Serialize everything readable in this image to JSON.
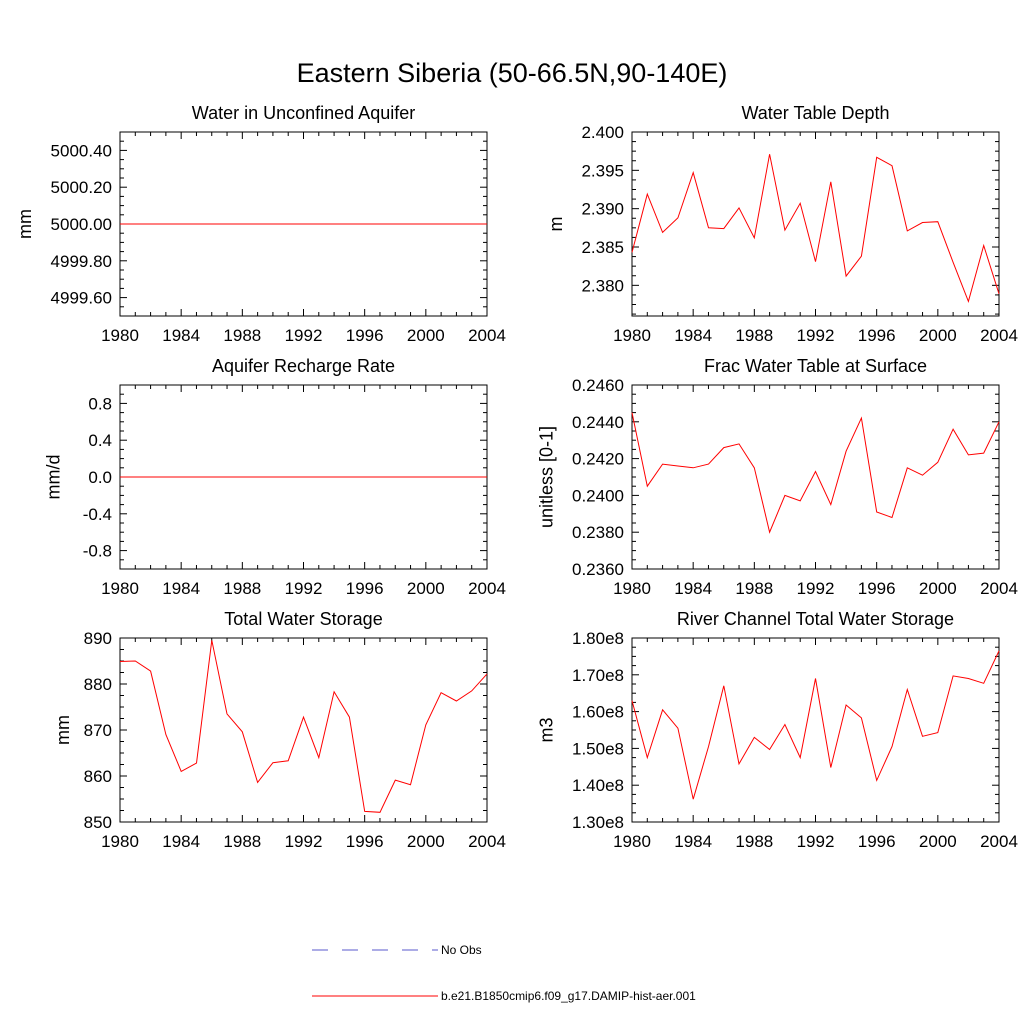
{
  "title": "Eastern Siberia (50-66.5N,90-140E)",
  "legend": {
    "placement": "bottom-center",
    "entries": [
      {
        "label": "No Obs",
        "style": "dashed",
        "color": "#5a5acc"
      },
      {
        "label": "b.e21.B1850cmip6.f09_g17.DAMIP-hist-aer.001",
        "style": "solid",
        "color": "#ff0000"
      }
    ]
  },
  "chart_data": [
    {
      "type": "line",
      "title": "Water in Unconfined Aquifer",
      "ylabel": "mm",
      "xlim": [
        1980,
        2004
      ],
      "ylim": [
        4999.5,
        5000.5
      ],
      "xticks": [
        "1980",
        "1984",
        "1988",
        "1992",
        "1996",
        "2000",
        "2004"
      ],
      "yticks": [
        {
          "v": 4999.6,
          "label": "4999.60"
        },
        {
          "v": 4999.8,
          "label": "4999.80"
        },
        {
          "v": 5000.0,
          "label": "5000.00"
        },
        {
          "v": 5000.2,
          "label": "5000.20"
        },
        {
          "v": 5000.4,
          "label": "5000.40"
        }
      ],
      "series": [
        {
          "color": "#ff0000",
          "x": [
            1980,
            2004
          ],
          "y": [
            5000.0,
            5000.0
          ]
        }
      ]
    },
    {
      "type": "line",
      "title": "Water Table Depth",
      "ylabel": "m",
      "xlim": [
        1980,
        2004
      ],
      "ylim": [
        2.376,
        2.4
      ],
      "xticks": [
        "1980",
        "1984",
        "1988",
        "1992",
        "1996",
        "2000",
        "2004"
      ],
      "yticks": [
        {
          "v": 2.38,
          "label": "2.380"
        },
        {
          "v": 2.385,
          "label": "2.385"
        },
        {
          "v": 2.39,
          "label": "2.390"
        },
        {
          "v": 2.395,
          "label": "2.395"
        },
        {
          "v": 2.4,
          "label": "2.400"
        }
      ],
      "series": [
        {
          "color": "#ff0000",
          "x": [
            1980,
            1981,
            1982,
            1983,
            1984,
            1985,
            1986,
            1987,
            1988,
            1989,
            1990,
            1991,
            1992,
            1993,
            1994,
            1995,
            1996,
            1997,
            1998,
            1999,
            2000,
            2001,
            2002,
            2003,
            2004
          ],
          "y": [
            2.3843,
            2.3919,
            2.3869,
            2.3888,
            2.3947,
            2.3875,
            2.3874,
            2.3901,
            2.3862,
            2.3971,
            2.3872,
            2.3907,
            2.3831,
            2.3935,
            2.3812,
            2.3838,
            2.3967,
            2.3956,
            2.3871,
            2.3882,
            2.3883,
            2.383,
            2.3779,
            2.3852,
            2.3789
          ]
        }
      ]
    },
    {
      "type": "line",
      "title": "Aquifer Recharge Rate",
      "ylabel": "mm/d",
      "xlim": [
        1980,
        2004
      ],
      "ylim": [
        -1.0,
        1.0
      ],
      "xticks": [
        "1980",
        "1984",
        "1988",
        "1992",
        "1996",
        "2000",
        "2004"
      ],
      "yticks": [
        {
          "v": -0.8,
          "label": "-0.8"
        },
        {
          "v": -0.4,
          "label": "-0.4"
        },
        {
          "v": 0.0,
          "label": "0.0"
        },
        {
          "v": 0.4,
          "label": "0.4"
        },
        {
          "v": 0.8,
          "label": "0.8"
        }
      ],
      "series": [
        {
          "color": "#ff0000",
          "x": [
            1980,
            2004
          ],
          "y": [
            0.0,
            0.0
          ]
        }
      ]
    },
    {
      "type": "line",
      "title": "Frac Water Table at Surface",
      "ylabel": "unitless [0-1]",
      "xlim": [
        1980,
        2004
      ],
      "ylim": [
        0.236,
        0.246
      ],
      "xticks": [
        "1980",
        "1984",
        "1988",
        "1992",
        "1996",
        "2000",
        "2004"
      ],
      "yticks": [
        {
          "v": 0.236,
          "label": "0.2360"
        },
        {
          "v": 0.238,
          "label": "0.2380"
        },
        {
          "v": 0.24,
          "label": "0.2400"
        },
        {
          "v": 0.242,
          "label": "0.2420"
        },
        {
          "v": 0.244,
          "label": "0.2440"
        },
        {
          "v": 0.246,
          "label": "0.2460"
        }
      ],
      "series": [
        {
          "color": "#ff0000",
          "x": [
            1980,
            1981,
            1982,
            1983,
            1984,
            1985,
            1986,
            1987,
            1988,
            1989,
            1990,
            1991,
            1992,
            1993,
            1994,
            1995,
            1996,
            1997,
            1998,
            1999,
            2000,
            2001,
            2002,
            2003,
            2004
          ],
          "y": [
            0.2445,
            0.2405,
            0.2417,
            0.2416,
            0.2415,
            0.2417,
            0.2426,
            0.2428,
            0.2415,
            0.238,
            0.24,
            0.2397,
            0.2413,
            0.2395,
            0.2424,
            0.2442,
            0.2391,
            0.2388,
            0.2415,
            0.2411,
            0.2418,
            0.2436,
            0.2422,
            0.2423,
            0.244
          ]
        }
      ]
    },
    {
      "type": "line",
      "title": "Total Water Storage",
      "ylabel": "mm",
      "xlim": [
        1980,
        2004
      ],
      "ylim": [
        850,
        890
      ],
      "xticks": [
        "1980",
        "1984",
        "1988",
        "1992",
        "1996",
        "2000",
        "2004"
      ],
      "yticks": [
        {
          "v": 850,
          "label": "850"
        },
        {
          "v": 860,
          "label": "860"
        },
        {
          "v": 870,
          "label": "870"
        },
        {
          "v": 880,
          "label": "880"
        },
        {
          "v": 890,
          "label": "890"
        }
      ],
      "series": [
        {
          "color": "#ff0000",
          "x": [
            1980,
            1981,
            1982,
            1983,
            1984,
            1985,
            1986,
            1987,
            1988,
            1989,
            1990,
            1991,
            1992,
            1993,
            1994,
            1995,
            1996,
            1997,
            1998,
            1999,
            2000,
            2001,
            2002,
            2003,
            2004
          ],
          "y": [
            884.9,
            885.0,
            882.8,
            869.0,
            861.0,
            862.8,
            889.5,
            873.5,
            869.6,
            858.6,
            862.9,
            863.3,
            872.8,
            864.0,
            878.3,
            872.8,
            852.3,
            852.1,
            859.1,
            858.1,
            871.1,
            878.1,
            876.3,
            878.5,
            882.2
          ]
        }
      ]
    },
    {
      "type": "line",
      "title": "River Channel Total Water Storage",
      "ylabel": "m3",
      "xlim": [
        1980,
        2004
      ],
      "ylim": [
        130000000.0,
        180000000.0
      ],
      "xticks": [
        "1980",
        "1984",
        "1988",
        "1992",
        "1996",
        "2000",
        "2004"
      ],
      "yticks": [
        {
          "v": 130000000.0,
          "label": "1.30e8"
        },
        {
          "v": 140000000.0,
          "label": "1.40e8"
        },
        {
          "v": 150000000.0,
          "label": "1.50e8"
        },
        {
          "v": 160000000.0,
          "label": "1.60e8"
        },
        {
          "v": 170000000.0,
          "label": "1.70e8"
        },
        {
          "v": 180000000.0,
          "label": "1.80e8"
        }
      ],
      "series": [
        {
          "color": "#ff0000",
          "x": [
            1980,
            1981,
            1982,
            1983,
            1984,
            1985,
            1986,
            1987,
            1988,
            1989,
            1990,
            1991,
            1992,
            1993,
            1994,
            1995,
            1996,
            1997,
            1998,
            1999,
            2000,
            2001,
            2002,
            2003,
            2004
          ],
          "y": [
            163000000.0,
            147500000.0,
            160500000.0,
            155500000.0,
            136200000.0,
            150500000.0,
            167000000.0,
            145800000.0,
            153000000.0,
            149700000.0,
            156500000.0,
            147500000.0,
            169000000.0,
            144800000.0,
            161800000.0,
            158300000.0,
            141300000.0,
            150500000.0,
            166000000.0,
            153300000.0,
            154300000.0,
            169700000.0,
            169000000.0,
            167700000.0,
            176500000.0
          ]
        }
      ]
    }
  ]
}
